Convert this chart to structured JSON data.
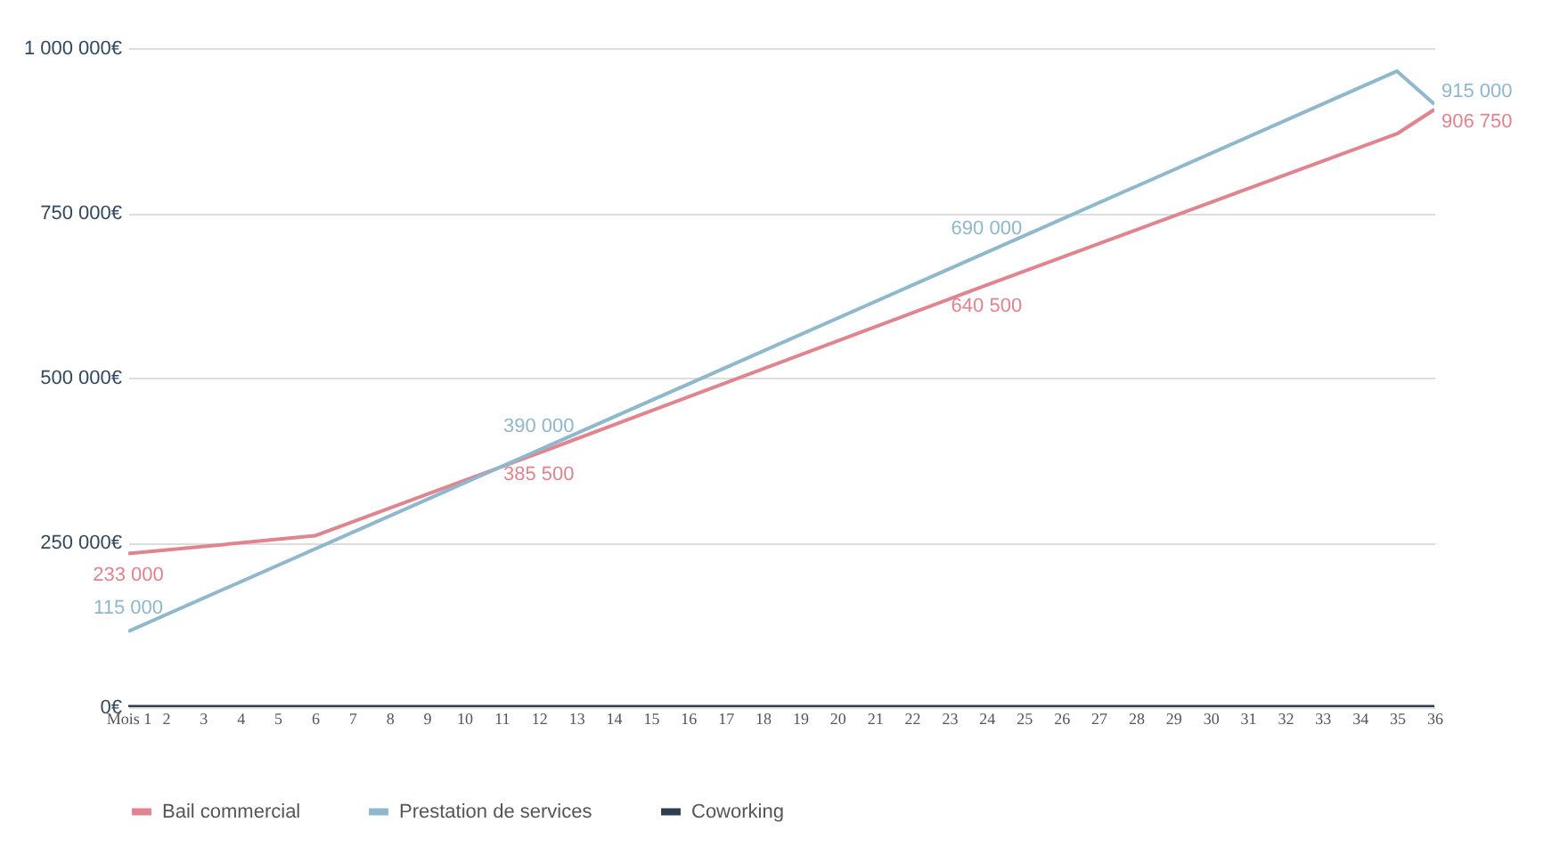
{
  "chart_data": {
    "type": "line",
    "legend": "bottom",
    "grid": "y",
    "marker": "none",
    "line_style": "solid",
    "xlim": [
      1,
      36
    ],
    "xticks": [
      {
        "value": 1,
        "label": "Mois 1"
      },
      2,
      3,
      4,
      5,
      6,
      7,
      8,
      9,
      10,
      11,
      12,
      13,
      14,
      15,
      16,
      17,
      18,
      19,
      20,
      21,
      22,
      23,
      24,
      25,
      26,
      27,
      28,
      29,
      30,
      31,
      32,
      33,
      34,
      35,
      36
    ],
    "ylim": [
      0,
      1000000
    ],
    "yticks": [
      {
        "value": 0,
        "label": "0€"
      },
      {
        "value": 250000,
        "label": "250 000€"
      },
      {
        "value": 500000,
        "label": "500 000€"
      },
      {
        "value": 750000,
        "label": "750 000€"
      },
      {
        "value": 1000000,
        "label": "1 000 000€"
      }
    ],
    "series": [
      {
        "name": "Bail commercial",
        "color": "#e0848f",
        "x": [
          1,
          6,
          12,
          24,
          35,
          36
        ],
        "values": [
          233000,
          260000,
          385500,
          640500,
          870000,
          906750
        ],
        "value_labels": [
          "233 000",
          null,
          "385 500",
          "640 500",
          null,
          "906 750"
        ]
      },
      {
        "name": "Prestation de services",
        "color": "#8fb8cc",
        "x": [
          1,
          12,
          24,
          34,
          35,
          36
        ],
        "values": [
          115000,
          390000,
          690000,
          940000,
          965000,
          915000
        ],
        "value_labels": [
          "115 000",
          "390 000",
          "690 000",
          null,
          null,
          "915 000"
        ]
      },
      {
        "name": "Coworking",
        "color": "#2c3e50",
        "x": [
          1,
          36
        ],
        "values": [
          0,
          0
        ]
      }
    ]
  }
}
